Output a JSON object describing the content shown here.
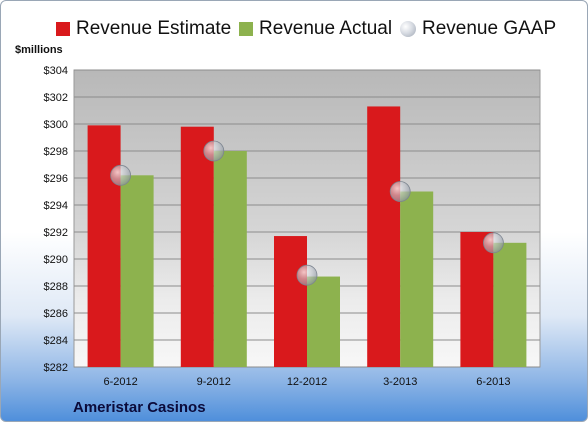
{
  "colors": {
    "estimate": "#d9191c",
    "actual": "#8db24e",
    "gaap": "#b7bdc7"
  },
  "chart_data": {
    "type": "bar",
    "ylabel": "$millions",
    "ylim": [
      282,
      304
    ],
    "y_ticks": [
      "$282",
      "$284",
      "$286",
      "$288",
      "$290",
      "$292",
      "$294",
      "$296",
      "$298",
      "$300",
      "$302",
      "$304"
    ],
    "categories": [
      "6-2012",
      "9-2012",
      "12-2012",
      "3-2013",
      "6-2013"
    ],
    "series": [
      {
        "name": "Revenue Estimate",
        "values": [
          299.9,
          299.8,
          291.7,
          301.3,
          292.0
        ]
      },
      {
        "name": "Revenue Actual",
        "values": [
          296.2,
          298.0,
          288.7,
          295.0,
          291.2
        ]
      },
      {
        "name": "Revenue GAAP",
        "values": [
          296.2,
          298.0,
          288.8,
          295.0,
          291.2
        ]
      }
    ],
    "legend_position": "top",
    "grid": true,
    "annotation": "Ameristar Casinos"
  }
}
